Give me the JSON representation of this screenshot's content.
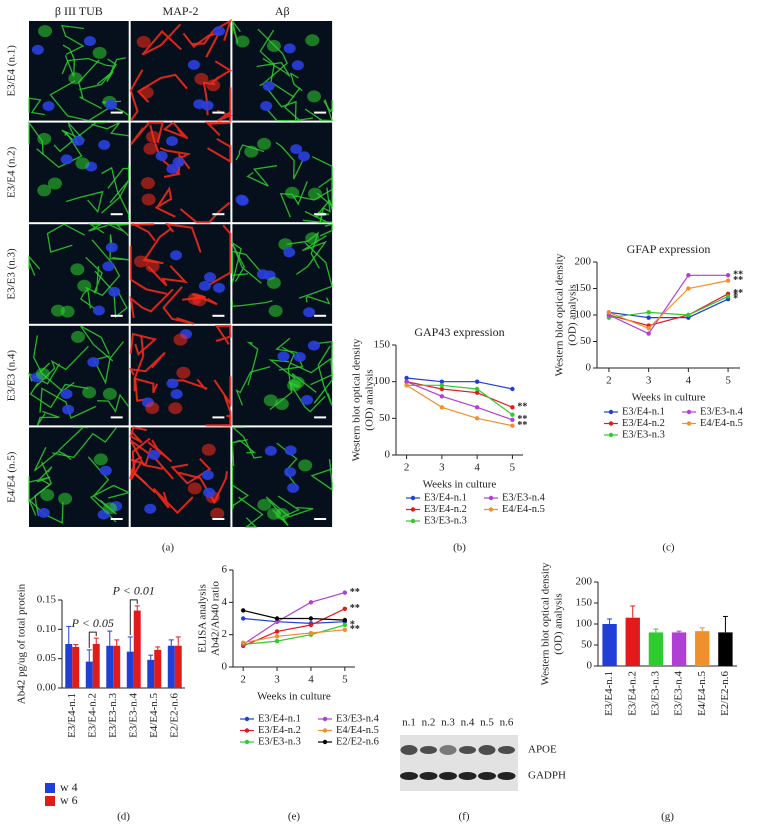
{
  "figure": {
    "panels": {
      "a": {
        "column_headers": [
          "β III TUB",
          "MAP-2",
          "Aβ"
        ],
        "header_colors": [
          "#1fa31f",
          "#e8201c",
          "#1fa31f"
        ],
        "row_labels": [
          "E3/E4 (n.1)",
          "E3/E4 (n.2)",
          "E3/E3 (n.3)",
          "E3/E3 (n.4)",
          "E4/E4 (n.5)"
        ],
        "panel_label": "(a)"
      },
      "f": {
        "lanes": [
          "n.1",
          "n.2",
          "n.3",
          "n.4",
          "n.5",
          "n.6"
        ],
        "bands": [
          "APOE",
          "GADPH"
        ],
        "panel_label": "(f)"
      }
    }
  },
  "chart_data": [
    {
      "type": "line",
      "title": "GAP43 expression",
      "ylabel": [
        "Western blot optical density",
        "(OD) analysis"
      ],
      "xlabel": "Weeks in culture",
      "x": [
        2,
        3,
        4,
        5
      ],
      "xlim": [
        1.7,
        5.3
      ],
      "xticks": [
        2,
        3,
        4,
        5
      ],
      "ylim": [
        0,
        150
      ],
      "yticks": [
        0,
        50,
        100,
        150
      ],
      "series": [
        {
          "name": "E3/E4-n.1",
          "color": "#1f3fd6",
          "values": [
            105,
            100,
            100,
            90
          ]
        },
        {
          "name": "E3/E4-n.2",
          "color": "#e31a1c",
          "values": [
            100,
            90,
            85,
            65
          ],
          "marker_label": "**"
        },
        {
          "name": "E3/E3-n.3",
          "color": "#2ecc2e",
          "values": [
            95,
            95,
            90,
            55
          ]
        },
        {
          "name": "E3/E3-n.4",
          "color": "#b03fd6",
          "values": [
            100,
            80,
            65,
            48
          ],
          "marker_label": "**"
        },
        {
          "name": "E4/E4-n.5",
          "color": "#f0902c",
          "values": [
            95,
            65,
            50,
            40
          ],
          "marker_label": "**"
        }
      ],
      "panel_label": "(b)"
    },
    {
      "type": "line",
      "title": "GFAP expression",
      "ylabel": [
        "Western blot optical density",
        "(OD) analysis"
      ],
      "xlabel": "Weeks in culture",
      "x": [
        2,
        3,
        4,
        5
      ],
      "xlim": [
        1.7,
        5.3
      ],
      "xticks": [
        2,
        3,
        4,
        5
      ],
      "ylim": [
        0,
        200
      ],
      "yticks": [
        0,
        50,
        100,
        150,
        200
      ],
      "series": [
        {
          "name": "E3/E4-n.1",
          "color": "#1f3fd6",
          "values": [
            105,
            95,
            95,
            130
          ],
          "marker_label": "*"
        },
        {
          "name": "E3/E4-n.2",
          "color": "#e31a1c",
          "values": [
            100,
            80,
            100,
            140
          ],
          "marker_label": "**"
        },
        {
          "name": "E3/E3-n.3",
          "color": "#2ecc2e",
          "values": [
            95,
            105,
            100,
            135
          ],
          "marker_label": "*"
        },
        {
          "name": "E3/E3-n.4",
          "color": "#b03fd6",
          "values": [
            100,
            65,
            175,
            175
          ],
          "marker_label": "**"
        },
        {
          "name": "E4/E4-n.5",
          "color": "#f0902c",
          "values": [
            105,
            75,
            150,
            165
          ],
          "marker_label": "**"
        }
      ],
      "panel_label": "(c)"
    },
    {
      "type": "bar",
      "ylabel": [
        "Ab42 pg/ug of total protein"
      ],
      "categories": [
        "E3/E4-n.1",
        "E3/E4-n.2",
        "E3/E3-n.3",
        "E3/E3-n.4",
        "E4/E4-n.5",
        "E2/E2-n.6"
      ],
      "ylim": [
        0,
        0.15
      ],
      "yticks": [
        {
          "value": 0,
          "label": "0.00"
        },
        {
          "value": 0.05,
          "label": "0.05"
        },
        {
          "value": 0.1,
          "label": "0.10"
        },
        {
          "value": 0.15,
          "label": "0.15"
        }
      ],
      "series": [
        {
          "name": "w 4",
          "color": "#1f3fd6",
          "values": [
            0.075,
            0.045,
            0.072,
            0.062,
            0.048,
            0.072
          ],
          "errors": [
            0.03,
            0.02,
            0.025,
            0.025,
            0.008,
            0.01
          ]
        },
        {
          "name": "w 6",
          "color": "#e31a1c",
          "values": [
            0.07,
            0.075,
            0.072,
            0.132,
            0.065,
            0.072
          ],
          "errors": [
            0.004,
            0.01,
            0.01,
            0.008,
            0.005,
            0.015
          ]
        }
      ],
      "annotations": [
        {
          "text": "P < 0.05",
          "category": 1
        },
        {
          "text": "P < 0.01",
          "category": 3
        }
      ],
      "panel_label": "(d)"
    },
    {
      "type": "line",
      "ylabel": [
        "ELISA analysis",
        "Ab42/Ab40 ratio"
      ],
      "xlabel": "Weeks in culture",
      "x": [
        2,
        3,
        4,
        5
      ],
      "xlim": [
        1.7,
        5.3
      ],
      "xticks": [
        2,
        3,
        4,
        5
      ],
      "ylim": [
        0,
        6
      ],
      "yticks": [
        0,
        2,
        4,
        6
      ],
      "series": [
        {
          "name": "E3/E4-n.1",
          "color": "#1f3fd6",
          "values": [
            3.0,
            2.8,
            2.7,
            2.8
          ]
        },
        {
          "name": "E3/E4-n.2",
          "color": "#e31a1c",
          "values": [
            1.3,
            2.2,
            2.6,
            3.6
          ],
          "marker_label": "**"
        },
        {
          "name": "E3/E3-n.3",
          "color": "#2ecc2e",
          "values": [
            1.4,
            1.6,
            2.0,
            2.6
          ],
          "marker_label": "*"
        },
        {
          "name": "E3/E3-n.4",
          "color": "#b03fd6",
          "values": [
            1.4,
            2.8,
            4.0,
            4.6
          ],
          "marker_label": "**"
        },
        {
          "name": "E4/E4-n.5",
          "color": "#f0902c",
          "values": [
            1.5,
            1.9,
            2.1,
            2.3
          ],
          "marker_label": "**"
        },
        {
          "name": "E2/E2-n.6",
          "color": "#000000",
          "values": [
            3.5,
            3.0,
            3.0,
            2.9
          ]
        }
      ],
      "panel_label": "(e)"
    },
    {
      "type": "bar",
      "ylabel": [
        "Western blot optical density",
        "(OD) analysis"
      ],
      "categories": [
        "E3/E4-n.1",
        "E3/E4-n.2",
        "E3/E3-n.3",
        "E3/E3-n.4",
        "E4/E4-n.5",
        "E2/E2-n.6"
      ],
      "ylim": [
        0,
        200
      ],
      "yticks": [
        0,
        50,
        100,
        150,
        200
      ],
      "values": [
        100,
        115,
        80,
        80,
        83,
        80
      ],
      "errors": [
        12,
        28,
        8,
        3,
        8,
        38
      ],
      "colors": [
        "#1f3fd6",
        "#e31a1c",
        "#2ecc2e",
        "#b03fd6",
        "#f0902c",
        "#000000"
      ],
      "panel_label": "(g)"
    }
  ]
}
